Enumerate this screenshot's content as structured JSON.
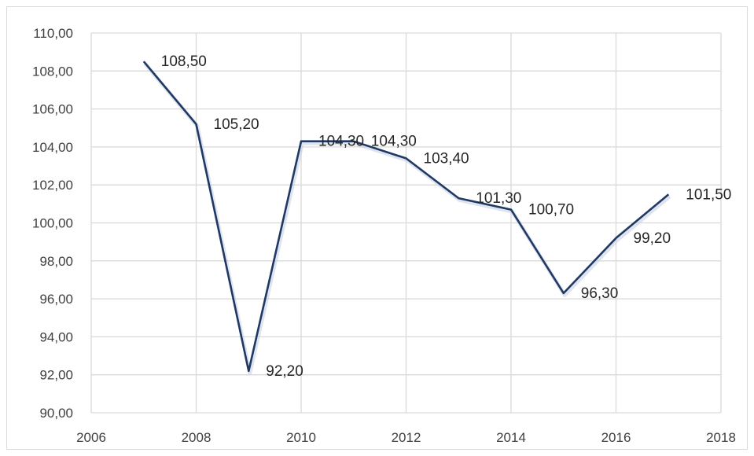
{
  "chart_data": {
    "type": "line",
    "title": "",
    "xlabel": "",
    "ylabel": "",
    "xlim": [
      2006,
      2018
    ],
    "ylim": [
      90,
      110
    ],
    "x_ticks": [
      "2006",
      "2008",
      "2010",
      "2012",
      "2014",
      "2016",
      "2018"
    ],
    "y_ticks": [
      "90,00",
      "92,00",
      "94,00",
      "96,00",
      "98,00",
      "100,00",
      "102,00",
      "104,00",
      "106,00",
      "108,00",
      "110,00"
    ],
    "grid": true,
    "legend": "none",
    "series": [
      {
        "color": "#1f3864",
        "points": [
          {
            "x": 2007,
            "y": 108.5,
            "label": "108,50"
          },
          {
            "x": 2008,
            "y": 105.2,
            "label": "105,20"
          },
          {
            "x": 2009,
            "y": 92.2,
            "label": "92,20"
          },
          {
            "x": 2010,
            "y": 104.3,
            "label": "104,30"
          },
          {
            "x": 2011,
            "y": 104.3,
            "label": "104,30"
          },
          {
            "x": 2012,
            "y": 103.4,
            "label": "103,40"
          },
          {
            "x": 2013,
            "y": 101.3,
            "label": "101,30"
          },
          {
            "x": 2014,
            "y": 100.7,
            "label": "100,70"
          },
          {
            "x": 2015,
            "y": 96.3,
            "label": "96,30"
          },
          {
            "x": 2016,
            "y": 99.2,
            "label": "99,20"
          },
          {
            "x": 2017,
            "y": 101.5,
            "label": "101,50"
          }
        ]
      }
    ],
    "colors": {
      "gridline": "#d9d9d9",
      "tick_text": "#404040",
      "label_text": "#262626"
    }
  }
}
